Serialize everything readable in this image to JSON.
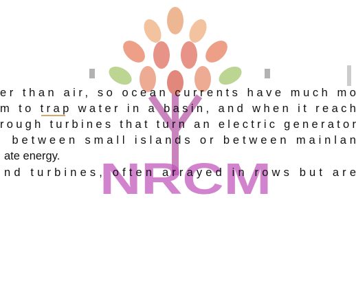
{
  "watermark": {
    "text": "NRCM"
  },
  "lines": [
    "er than air, so ocean currents have much mo",
    "m to trap water in a basin, and when it reach",
    "rough turbines that turn an electric generator",
    " between small islands or between mainlan",
    "ate energy.",
    "nd turbines, often arrayed in rows but are"
  ]
}
